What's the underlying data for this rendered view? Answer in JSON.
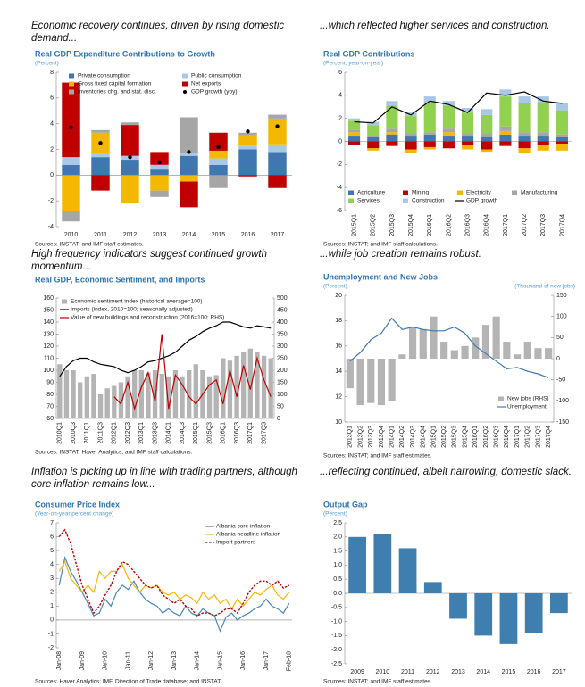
{
  "captions": [
    "Economic recovery continues, driven by rising domestic demand...",
    "...which reflected higher services and construction.",
    "High frequency indicators suggest continued growth momentum...",
    "...while job creation remains robust.",
    "Inflation is picking up in line with trading partners, although core inflation remains low...",
    "...reflecting continued, albeit narrowing, domestic slack."
  ],
  "chart_data": [
    {
      "type": "bar",
      "stacked": true,
      "title": "Real GDP Expenditure Contributions to Growth",
      "subtitle": "(Percent)",
      "source": "Sources: INSTAT; and IMF staff estimates.",
      "categories": [
        "2010",
        "2011",
        "2012",
        "2013",
        "2014",
        "2015",
        "2016",
        "2017"
      ],
      "ylim": [
        -4,
        8
      ],
      "yticks": [
        -4,
        -2,
        0,
        2,
        4,
        6,
        8
      ],
      "legend": "top",
      "series": [
        {
          "name": "Private consumption",
          "type": "bar",
          "color": "#3f78b0",
          "values": [
            0.8,
            1.4,
            1.2,
            0.5,
            1.5,
            0.8,
            2.0,
            1.8
          ]
        },
        {
          "name": "Public consumption",
          "type": "bar",
          "color": "#a9c8e8",
          "values": [
            0.6,
            0.3,
            0.3,
            0.3,
            0.2,
            0.5,
            0.3,
            0.6
          ]
        },
        {
          "name": "Gross fixed capital formation",
          "type": "bar",
          "color": "#f5b800",
          "values": [
            -2.8,
            1.6,
            -2.2,
            -1.2,
            -0.5,
            0.6,
            0.8,
            2.0
          ]
        },
        {
          "name": "Net exports",
          "type": "bar",
          "color": "#c00000",
          "values": [
            5.8,
            -1.2,
            2.4,
            1.0,
            -2.0,
            1.4,
            -0.1,
            -1.0
          ]
        },
        {
          "name": "Inventories chg. and stat. disc.",
          "type": "bar",
          "color": "#a6a6a6",
          "values": [
            -0.8,
            0.2,
            0.2,
            -0.5,
            2.8,
            -1.0,
            0.2,
            0.3
          ]
        },
        {
          "name": "GDP growth (yoy)",
          "type": "dot",
          "color": "#000000",
          "values": [
            3.7,
            2.5,
            1.4,
            1.0,
            1.8,
            2.2,
            3.4,
            3.8
          ]
        }
      ]
    },
    {
      "type": "bar",
      "stacked": true,
      "title": "Real GDP Contributions",
      "subtitle": "(Percent; year-on-year)",
      "source": "Sources: INSTAT; and IMF staff calculations.",
      "categories": [
        "2015Q1",
        "2015Q2",
        "2015Q3",
        "2015Q4",
        "2016Q1",
        "2016Q2",
        "2016Q3",
        "2016Q4",
        "2017Q1",
        "2017Q2",
        "2017Q3",
        "2017Q4"
      ],
      "ylim": [
        -6,
        6
      ],
      "yticks": [
        -6,
        -4,
        -2,
        0,
        2,
        4,
        6
      ],
      "legend": "bottom",
      "series": [
        {
          "name": "Agriculture",
          "type": "bar",
          "color": "#3f78b0",
          "values": [
            0.5,
            0.4,
            0.6,
            0.5,
            0.6,
            0.5,
            0.5,
            0.4,
            0.6,
            0.5,
            0.5,
            0.4
          ]
        },
        {
          "name": "Mining",
          "type": "bar",
          "color": "#c00000",
          "values": [
            -0.3,
            -0.6,
            -0.4,
            -0.7,
            -0.5,
            -0.6,
            -0.3,
            -0.7,
            -0.4,
            -0.6,
            -0.3,
            -0.2
          ]
        },
        {
          "name": "Electricity",
          "type": "bar",
          "color": "#f5b800",
          "values": [
            0.3,
            -0.2,
            0.2,
            -0.3,
            -0.2,
            0.3,
            -0.4,
            -0.2,
            0.3,
            -0.4,
            -0.5,
            -0.6
          ]
        },
        {
          "name": "Manufacturing",
          "type": "bar",
          "color": "#a6a6a6",
          "values": [
            0.2,
            0.1,
            0.3,
            0.2,
            0.2,
            0.3,
            0.2,
            0.3,
            0.4,
            0.3,
            0.3,
            0.2
          ]
        },
        {
          "name": "Services",
          "type": "bar",
          "color": "#92d050",
          "values": [
            0.8,
            0.9,
            2.0,
            1.5,
            2.6,
            2.0,
            1.8,
            1.6,
            2.6,
            2.5,
            2.6,
            2.1
          ]
        },
        {
          "name": "Construction",
          "type": "bar",
          "color": "#a9c8e8",
          "values": [
            0.2,
            0.3,
            0.4,
            0.3,
            0.5,
            0.4,
            0.4,
            0.5,
            0.6,
            0.6,
            0.5,
            0.6
          ]
        },
        {
          "name": "GDP growth",
          "type": "line",
          "color": "#000000",
          "values": [
            1.7,
            1.6,
            3.0,
            2.3,
            3.5,
            3.2,
            2.5,
            4.2,
            4.0,
            4.3,
            3.5,
            3.3
          ]
        }
      ]
    },
    {
      "type": "bar",
      "title": "Real GDP, Economic Sentiment, and Imports",
      "source": "Sources: INSTAT; Haver Analytics; and IMF staff calculations.",
      "categories": [
        "2010Q1",
        null,
        "2010Q3",
        null,
        "2011Q1",
        null,
        "2011Q3",
        null,
        "2012Q1",
        null,
        "2012Q3",
        null,
        "2013Q1",
        null,
        "2013Q3",
        null,
        "2014Q1",
        null,
        "2014Q3",
        null,
        "2015Q1",
        null,
        "2015Q3",
        null,
        "2016Q1",
        null,
        "2016Q3",
        null,
        "2017Q1",
        null,
        "2017Q3",
        null
      ],
      "ylim": [
        60,
        160
      ],
      "yticks": [
        60,
        70,
        80,
        90,
        100,
        110,
        120,
        130,
        140,
        150,
        160
      ],
      "y2lim": [
        0,
        500
      ],
      "y2ticks": [
        0,
        50,
        100,
        150,
        200,
        250,
        300,
        350,
        400,
        450,
        500
      ],
      "legend": "upper left",
      "series": [
        {
          "name": "Economic sentiment index (historical average=100)",
          "type": "bar",
          "color": "#b4b4b4",
          "values": [
            105,
            100,
            100,
            90,
            95,
            97,
            80,
            85,
            87,
            90,
            95,
            100,
            100,
            98,
            100,
            97,
            95,
            100,
            95,
            100,
            105,
            100,
            95,
            96,
            110,
            108,
            112,
            115,
            118,
            115,
            112,
            110
          ]
        },
        {
          "name": "Imports (index, 2010=100; seasonally adjusted)",
          "type": "line",
          "color": "#000000",
          "values": [
            95,
            103,
            108,
            110,
            110,
            107,
            105,
            104,
            103,
            100,
            98,
            100,
            103,
            107,
            108,
            110,
            112,
            115,
            120,
            125,
            128,
            132,
            135,
            137,
            140,
            140,
            138,
            136,
            135,
            137,
            136,
            135
          ]
        },
        {
          "name": "Value of new buildings and reconstruction (2016=100; RHS)",
          "type": "line",
          "axis": "y2",
          "color": "#c00000",
          "values": [
            null,
            null,
            null,
            null,
            null,
            null,
            null,
            null,
            90,
            60,
            150,
            40,
            130,
            190,
            70,
            350,
            40,
            180,
            140,
            90,
            60,
            100,
            140,
            160,
            60,
            200,
            90,
            220,
            120,
            250,
            160,
            90
          ]
        }
      ]
    },
    {
      "type": "bar",
      "title": "Unemployment and New Jobs",
      "subtitle": "(Percent)",
      "y2_label": "(Thousand of new jobs)",
      "source": "Sources: INSTAT; and IMF staff estimates.",
      "categories": [
        "2013Q1",
        "2013Q2",
        "2013Q3",
        "2013Q4",
        "2014Q1",
        "2014Q2",
        "2014Q3",
        "2014Q4",
        "2015Q1",
        "2015Q2",
        "2015Q3",
        "2015Q4",
        "2016Q1",
        "2016Q2",
        "2016Q3",
        "2016Q4",
        "2017Q1",
        "2017Q2",
        "2017Q3",
        "2017Q4"
      ],
      "ylim": [
        10,
        20
      ],
      "yticks": [
        10,
        12,
        14,
        16,
        18,
        20
      ],
      "y2lim": [
        -150,
        150
      ],
      "y2ticks": [
        -150,
        -100,
        -50,
        0,
        50,
        100,
        150
      ],
      "legend": "lower right",
      "series": [
        {
          "name": "New jobs (RHS)",
          "type": "bar",
          "axis": "y2",
          "color": "#b4b4b4",
          "values": [
            -70,
            -110,
            -105,
            -110,
            -100,
            10,
            75,
            70,
            100,
            40,
            20,
            30,
            50,
            80,
            100,
            40,
            10,
            40,
            25,
            25
          ]
        },
        {
          "name": "Unemployment",
          "type": "line",
          "color": "#3f78b0",
          "values": [
            14.8,
            15.5,
            16.5,
            17.0,
            18.2,
            17.3,
            17.5,
            17.3,
            17.2,
            17.2,
            17.5,
            17.0,
            16.0,
            15.4,
            14.8,
            14.2,
            14.3,
            14.0,
            13.8,
            13.5
          ]
        }
      ]
    },
    {
      "type": "line",
      "title": "Consumer Price Index",
      "subtitle": "(Year-on-year percent change)",
      "source": "Sources: Haver Analytics; IMF, Direction of Trade database; and INSTAT.",
      "categories": [
        "Jan-08",
        null,
        null,
        null,
        "Jan-09",
        null,
        null,
        null,
        "Jan-10",
        null,
        null,
        null,
        "Jan-11",
        null,
        null,
        null,
        "Jan-12",
        null,
        null,
        null,
        "Jan-13",
        null,
        null,
        null,
        "Jan-14",
        null,
        null,
        null,
        "Jan-15",
        null,
        null,
        null,
        "Jan-16",
        null,
        null,
        null,
        "Jan-17",
        null,
        null,
        null,
        "Feb-18"
      ],
      "ylim": [
        -2,
        7
      ],
      "yticks": [
        -2,
        -1,
        0,
        1,
        2,
        3,
        4,
        5,
        6,
        7
      ],
      "legend": "upper right",
      "series": [
        {
          "name": "Albania core inflation",
          "type": "line",
          "color": "#4a86b8",
          "values": [
            2.5,
            4.5,
            3.5,
            2.8,
            2.0,
            1.2,
            0.3,
            0.5,
            1.5,
            1.0,
            2.0,
            2.5,
            2.2,
            2.8,
            2.0,
            1.5,
            1.2,
            1.0,
            0.5,
            0.8,
            0.5,
            0.3,
            1.0,
            0.5,
            0.3,
            0.8,
            0.5,
            0.3,
            -0.8,
            0.2,
            0.5,
            0.0,
            0.3,
            0.5,
            0.8,
            1.0,
            1.5,
            1.0,
            0.8,
            0.5,
            1.2
          ]
        },
        {
          "name": "Albania headline inflation",
          "type": "line",
          "color": "#f5b800",
          "values": [
            3.5,
            4.2,
            3.0,
            2.5,
            2.0,
            2.5,
            2.0,
            3.5,
            3.0,
            3.5,
            3.5,
            4.0,
            3.0,
            2.5,
            2.0,
            2.5,
            2.3,
            2.5,
            2.0,
            1.8,
            2.0,
            1.5,
            1.8,
            1.6,
            1.2,
            2.0,
            1.5,
            1.8,
            1.2,
            1.5,
            0.8,
            1.5,
            1.0,
            1.5,
            2.0,
            1.8,
            2.2,
            2.5,
            1.8,
            1.5,
            2.0
          ]
        },
        {
          "name": "Import partners",
          "type": "line",
          "dash": true,
          "color": "#c00000",
          "values": [
            6.0,
            6.5,
            5.5,
            4.0,
            2.5,
            1.5,
            0.5,
            1.0,
            1.8,
            2.5,
            3.5,
            4.2,
            4.0,
            3.5,
            3.0,
            2.5,
            2.3,
            2.5,
            1.8,
            1.5,
            1.2,
            1.5,
            1.0,
            0.8,
            0.3,
            0.5,
            0.5,
            0.3,
            0.5,
            0.8,
            0.8,
            0.5,
            1.2,
            2.0,
            2.5,
            2.8,
            2.8,
            2.5,
            2.8,
            2.3,
            2.5
          ]
        }
      ]
    },
    {
      "type": "bar",
      "title": "Output Gap",
      "subtitle": "(Percent)",
      "source": "Sources: INSTAT; and IMF staff estimates.",
      "categories": [
        "2009",
        "2010",
        "2011",
        "2012",
        "2013",
        "2014",
        "2015",
        "2016",
        "2017"
      ],
      "values": [
        2.0,
        2.1,
        1.6,
        0.4,
        -0.9,
        -1.5,
        -1.8,
        -1.4,
        -0.7
      ],
      "color": "#3f7fb0",
      "ylim": [
        -2.5,
        2.5
      ],
      "yticks": [
        -2.5,
        {
          "value": -2,
          "label": "-2.0"
        },
        -1.5,
        {
          "value": -1,
          "label": "-1.0"
        },
        -0.5,
        {
          "value": 0,
          "label": "0.0"
        },
        0.5,
        {
          "value": 1,
          "label": "1.0"
        },
        1.5,
        {
          "value": 2,
          "label": "2.0"
        },
        2.5
      ]
    }
  ]
}
